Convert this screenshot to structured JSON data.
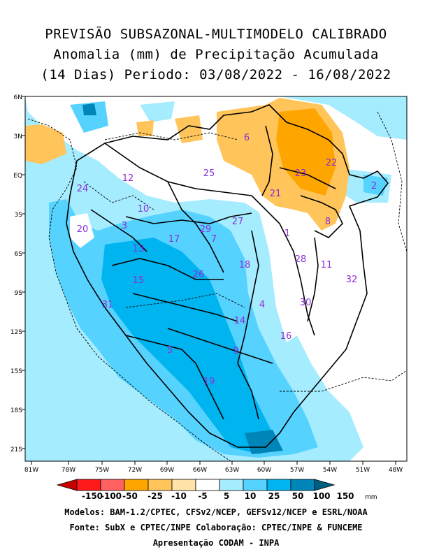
{
  "title": {
    "line1": "PREVISÃO SUBSAZONAL-MULTIMODELO CALIBRADO",
    "line2": "Anomalia (mm) de Precipitação Acumulada",
    "line3": "(14 Dias) Periodo: 03/08/2022 - 16/08/2022"
  },
  "axes": {
    "lon_labels": [
      "81W",
      "78W",
      "75W",
      "72W",
      "69W",
      "66W",
      "63W",
      "60W",
      "57W",
      "54W",
      "51W",
      "48W"
    ],
    "lat_labels": [
      "6N",
      "3N",
      "EQ",
      "3S",
      "6S",
      "9S",
      "12S",
      "15S",
      "18S",
      "21S"
    ]
  },
  "basins": [
    {
      "id": "1"
    },
    {
      "id": "2"
    },
    {
      "id": "3"
    },
    {
      "id": "4"
    },
    {
      "id": "5"
    },
    {
      "id": "6"
    },
    {
      "id": "7"
    },
    {
      "id": "8"
    },
    {
      "id": "9"
    },
    {
      "id": "10"
    },
    {
      "id": "11"
    },
    {
      "id": "12"
    },
    {
      "id": "13"
    },
    {
      "id": "14"
    },
    {
      "id": "15"
    },
    {
      "id": "16"
    },
    {
      "id": "17"
    },
    {
      "id": "18"
    },
    {
      "id": "19"
    },
    {
      "id": "20"
    },
    {
      "id": "21"
    },
    {
      "id": "22"
    },
    {
      "id": "23"
    },
    {
      "id": "24"
    },
    {
      "id": "25"
    },
    {
      "id": "26"
    },
    {
      "id": "27"
    },
    {
      "id": "28"
    },
    {
      "id": "29"
    },
    {
      "id": "30"
    },
    {
      "id": "31"
    },
    {
      "id": "32"
    }
  ],
  "colorbar": {
    "labels": [
      "-150",
      "-100",
      "-50",
      "-25",
      "-10",
      "-5",
      "5",
      "10",
      "25",
      "50",
      "100",
      "150"
    ],
    "unit": "mm",
    "colors": [
      "#c80000",
      "#ff1a1a",
      "#ff6060",
      "#ffa500",
      "#ffc45a",
      "#ffe3a8",
      "#ffffff",
      "#a6ecff",
      "#56d2ff",
      "#00b4f0",
      "#0085b8",
      "#005f80"
    ]
  },
  "footer": {
    "line1": "Modelos: BAM-1.2/CPTEC, CFSv2/NCEP, GEFSv12/NCEP e ESRL/NOAA",
    "line2": "Fonte: SubX e CPTEC/INPE     Colaboração: CPTEC/INPE & FUNCEME",
    "line3": "Apresentação CODAM - INPA"
  }
}
